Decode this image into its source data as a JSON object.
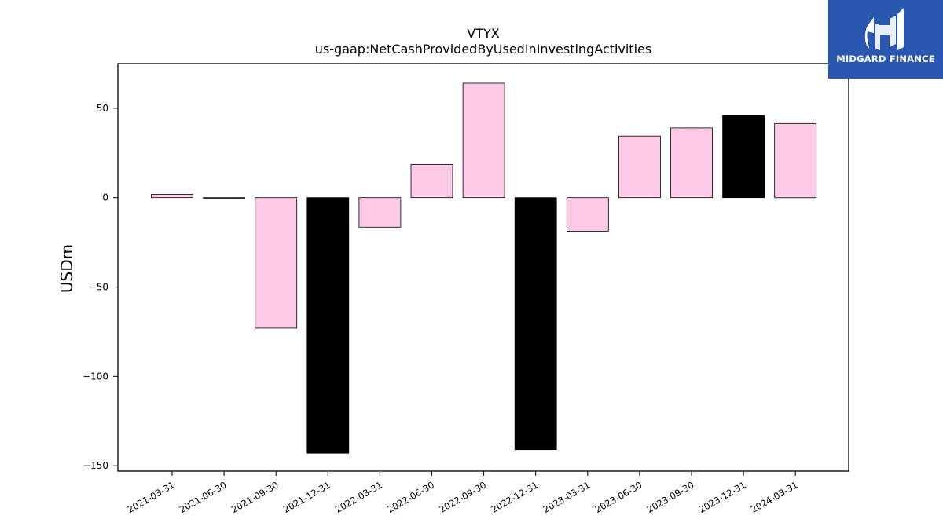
{
  "chart_data": {
    "type": "bar",
    "title": "VTYX",
    "subtitle": "us-gaap:NetCashProvidedByUsedInInvestingActivities",
    "xlabel": "",
    "ylabel": "USDm",
    "ylim": [
      -153,
      75
    ],
    "yticks": [
      50,
      0,
      -50,
      -100,
      -150
    ],
    "ytick_labels": [
      "50",
      "0",
      "−50",
      "−100",
      "−150"
    ],
    "categories": [
      "2021-03-31",
      "2021-06-30",
      "2021-09-30",
      "2021-12-31",
      "2022-03-31",
      "2022-06-30",
      "2022-09-30",
      "2022-12-31",
      "2023-03-31",
      "2023-06-30",
      "2023-09-30",
      "2023-12-31",
      "2024-03-31"
    ],
    "values": [
      1.8,
      -0.3,
      -73.0,
      -143.0,
      -16.5,
      18.5,
      64.0,
      -141.0,
      -18.8,
      34.5,
      39.0,
      46.0,
      41.5
    ],
    "colors": [
      "#fccae6",
      "#fccae6",
      "#fccae6",
      "#000000",
      "#fccae6",
      "#fccae6",
      "#fccae6",
      "#000000",
      "#fccae6",
      "#fccae6",
      "#fccae6",
      "#000000",
      "#fccae6"
    ],
    "grid": false,
    "legend": "none"
  },
  "logo": {
    "text": "MIDGARD FINANCE",
    "color": "#2a58b0"
  }
}
